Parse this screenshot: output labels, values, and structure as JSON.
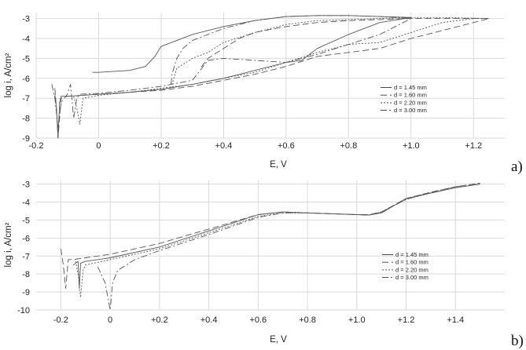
{
  "chart_data": [
    {
      "type": "line",
      "panel_label": "a)",
      "xlabel": "E, V",
      "ylabel": "log i, A/cm²",
      "xlim": [
        -0.2,
        1.3
      ],
      "ylim": [
        -9,
        -2.7
      ],
      "x_ticks": [
        -0.2,
        0,
        0.2,
        0.4,
        0.6,
        0.8,
        1.0,
        1.2
      ],
      "x_tick_labels": [
        "-0.2",
        "0",
        "+0.2",
        "+0.4",
        "+0.6",
        "+0.8",
        "+1.0",
        "+1.2"
      ],
      "y_ticks": [
        -3,
        -4,
        -5,
        -6,
        -7,
        -8,
        -9
      ],
      "y_tick_labels": [
        "-3",
        "-4",
        "-5",
        "-6",
        "-7",
        "-8",
        "-9"
      ],
      "grid": true,
      "legend_position": "right-middle",
      "series": [
        {
          "name": "d = 1.45 mm",
          "dash": "",
          "x": [
            -0.14,
            -0.135,
            -0.13,
            -0.125,
            -0.12,
            -0.1,
            -0.05,
            0,
            0.1,
            0.2,
            0.3,
            0.4,
            0.5,
            0.6,
            0.65,
            0.7,
            0.8,
            0.9,
            1.0,
            0.9,
            0.8,
            0.7,
            0.6,
            0.5,
            0.4,
            0.3,
            0.25,
            0.2,
            0.18,
            0.15,
            0.1,
            0,
            -0.02
          ],
          "y": [
            -6.8,
            -7.5,
            -9.0,
            -7.2,
            -6.9,
            -6.9,
            -6.85,
            -6.8,
            -6.7,
            -6.55,
            -6.3,
            -6.0,
            -5.6,
            -5.2,
            -5.1,
            -4.5,
            -3.8,
            -3.2,
            -2.95,
            -2.9,
            -2.85,
            -2.85,
            -2.9,
            -3.1,
            -3.4,
            -3.8,
            -4.1,
            -4.4,
            -4.9,
            -5.4,
            -5.6,
            -5.7,
            -5.7
          ]
        },
        {
          "name": "d = 1.60 mm",
          "dash": "8,4",
          "x": [
            -0.14,
            -0.135,
            -0.13,
            -0.12,
            -0.1,
            0,
            0.1,
            0.2,
            0.3,
            0.4,
            0.5,
            0.6,
            0.7,
            0.8,
            0.9,
            1.0,
            1.1,
            1.2,
            1.25,
            1.1,
            1.0,
            0.9,
            0.8,
            0.7,
            0.6,
            0.5,
            0.45,
            0.4,
            0.35,
            0.33,
            0.32
          ],
          "y": [
            -6.5,
            -7.5,
            -9.0,
            -7.0,
            -6.9,
            -6.8,
            -6.7,
            -6.6,
            -6.4,
            -6.1,
            -5.8,
            -5.4,
            -4.9,
            -4.7,
            -4.5,
            -4.0,
            -3.6,
            -3.2,
            -3.0,
            -3.0,
            -3.0,
            -3.05,
            -3.1,
            -3.2,
            -3.4,
            -3.7,
            -4.0,
            -4.5,
            -5.0,
            -5.4,
            -5.5
          ]
        },
        {
          "name": "d = 2.20 mm",
          "dash": "2,2",
          "x": [
            -0.08,
            -0.07,
            -0.06,
            -0.05,
            0,
            0.1,
            0.2,
            0.3,
            0.4,
            0.5,
            0.6,
            0.7,
            0.8,
            0.9,
            1.0,
            1.1,
            1.2,
            1.25,
            1.1,
            1.0,
            0.9,
            0.8,
            0.7,
            0.6,
            0.5,
            0.4,
            0.35,
            0.3,
            0.25,
            0.235
          ],
          "y": [
            -6.9,
            -7.5,
            -8.3,
            -7.0,
            -6.85,
            -6.7,
            -6.5,
            -6.3,
            -6.0,
            -5.7,
            -5.2,
            -4.7,
            -4.3,
            -4.2,
            -3.7,
            -3.2,
            -3.0,
            -3.0,
            -2.95,
            -2.95,
            -3.0,
            -3.05,
            -3.1,
            -3.3,
            -3.7,
            -4.2,
            -4.7,
            -5.0,
            -5.5,
            -6.3
          ]
        },
        {
          "name": "d = 3.00 mm",
          "dash": "8,3,2,3",
          "x": [
            -0.15,
            -0.14,
            -0.13,
            -0.12,
            -0.1,
            -0.09,
            -0.08,
            -0.07,
            -0.06,
            0,
            0.1,
            0.2,
            0.3,
            0.35,
            0.4,
            0.5,
            0.6,
            0.7,
            0.8,
            0.9,
            1.0,
            0.95,
            0.9,
            0.8,
            0.7,
            0.6,
            0.5,
            0.4,
            0.35,
            0.3,
            0.27,
            0.25,
            0.235,
            0.23
          ],
          "y": [
            -6.3,
            -7.0,
            -8.5,
            -7.2,
            -6.8,
            -6.3,
            -8.0,
            -7.0,
            -6.8,
            -6.75,
            -6.6,
            -6.4,
            -6.1,
            -5.1,
            -5.0,
            -5.1,
            -5.2,
            -4.8,
            -4.3,
            -3.8,
            -3.0,
            -2.95,
            -2.9,
            -2.85,
            -2.85,
            -2.9,
            -3.1,
            -3.5,
            -3.8,
            -4.1,
            -4.5,
            -5.0,
            -5.8,
            -6.5
          ]
        }
      ]
    },
    {
      "type": "line",
      "panel_label": "b)",
      "xlabel": "E, V",
      "ylabel": "log i, A/cm²",
      "xlim": [
        -0.3,
        1.6
      ],
      "ylim": [
        -10,
        -2.8
      ],
      "x_ticks": [
        -0.2,
        0,
        0.2,
        0.4,
        0.6,
        0.8,
        1.0,
        1.2,
        1.4
      ],
      "x_tick_labels": [
        "-0.2",
        "0",
        "+0.2",
        "+0.4",
        "+0.6",
        "+0.8",
        "+1.0",
        "+1.2",
        "+1.4"
      ],
      "y_ticks": [
        -3,
        -4,
        -5,
        -6,
        -7,
        -8,
        -9,
        -10
      ],
      "y_tick_labels": [
        "-3",
        "-4",
        "-5",
        "-6",
        "-7",
        "-8",
        "-9",
        "-10"
      ],
      "grid": true,
      "legend_position": "right-bottom",
      "series": [
        {
          "name": "d = 1.45 mm",
          "dash": "",
          "x": [
            -0.15,
            -0.13,
            -0.125,
            -0.12,
            -0.1,
            0,
            0.2,
            0.4,
            0.6,
            0.7,
            0.8,
            0.9,
            1.0,
            1.05,
            1.1,
            1.15,
            1.2,
            1.3,
            1.4,
            1.5
          ],
          "y": [
            -7.5,
            -7.3,
            -8.8,
            -7.4,
            -7.3,
            -7.1,
            -6.5,
            -5.6,
            -4.7,
            -4.55,
            -4.6,
            -4.65,
            -4.7,
            -4.72,
            -4.6,
            -4.2,
            -3.8,
            -3.5,
            -3.2,
            -3.0
          ]
        },
        {
          "name": "d = 1.60 mm",
          "dash": "8,4",
          "x": [
            -0.2,
            -0.19,
            -0.18,
            -0.17,
            -0.15,
            -0.1,
            0,
            0.2,
            0.4,
            0.6,
            0.7,
            0.8,
            0.9,
            1.0,
            1.05,
            1.1,
            1.2,
            1.3,
            1.4,
            1.5
          ],
          "y": [
            -6.6,
            -7.5,
            -8.8,
            -7.2,
            -7.2,
            -7.1,
            -6.9,
            -6.3,
            -5.5,
            -4.7,
            -4.55,
            -4.6,
            -4.65,
            -4.7,
            -4.7,
            -4.55,
            -3.8,
            -3.45,
            -3.15,
            -2.95
          ]
        },
        {
          "name": "d = 2.20 mm",
          "dash": "2,2",
          "x": [
            -0.14,
            -0.13,
            -0.12,
            -0.11,
            -0.1,
            0,
            0.2,
            0.4,
            0.6,
            0.7,
            0.8,
            0.9,
            1.0,
            1.05,
            1.1,
            1.2,
            1.3,
            1.4,
            1.5
          ],
          "y": [
            -7.3,
            -8.0,
            -9.3,
            -7.8,
            -7.5,
            -7.2,
            -6.6,
            -5.7,
            -4.8,
            -4.6,
            -4.6,
            -4.65,
            -4.7,
            -4.72,
            -4.55,
            -3.85,
            -3.5,
            -3.2,
            -3.0
          ]
        },
        {
          "name": "d = 3.00 mm",
          "dash": "8,3,2,3",
          "x": [
            -0.05,
            -0.02,
            0,
            0.01,
            0.03,
            0.1,
            0.2,
            0.4,
            0.6,
            0.7,
            0.8,
            0.9,
            1.0,
            1.05,
            1.1,
            1.2,
            1.3,
            1.4,
            1.5
          ],
          "y": [
            -7.6,
            -8.5,
            -10.0,
            -8.5,
            -7.8,
            -7.2,
            -6.7,
            -5.8,
            -4.85,
            -4.6,
            -4.6,
            -4.65,
            -4.7,
            -4.72,
            -4.55,
            -3.85,
            -3.45,
            -3.15,
            -2.95
          ]
        }
      ]
    }
  ]
}
